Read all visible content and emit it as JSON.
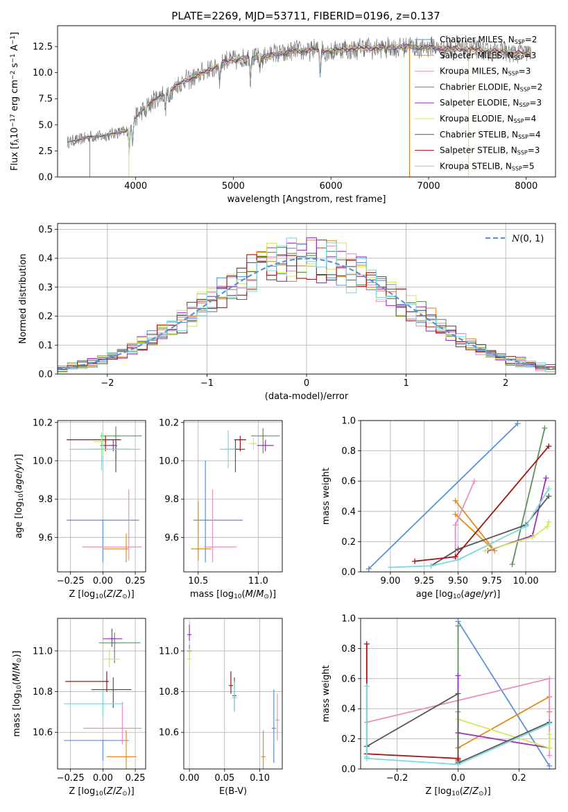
{
  "figure": {
    "title": "PLATE=2269, MJD=53711, FIBERID=0196, z=0.137"
  },
  "colors": {
    "Chabrier MILES": "#5b8fd6",
    "Salpeter MILES": "#e38a1b",
    "Kroupa MILES": "#e88fc2",
    "Chabrier ELODIE": "#5f8f62",
    "Salpeter ELODIE": "#9b2fc1",
    "Kroupa ELODIE": "#d4e85a",
    "Chabrier STELIB": "#555555",
    "Salpeter STELIB": "#a11515",
    "Kroupa STELIB": "#7fd8dc"
  },
  "chart_data": [
    {
      "id": "spectrum",
      "type": "line",
      "xlabel": "wavelength [Angstrom, rest frame]",
      "ylabel": "Flux [f_λ 10^-17 erg cm^-2 s^-1 A^-1]",
      "xlim": [
        3200,
        8300
      ],
      "ylim": [
        0,
        14.5
      ],
      "xticks": [
        4000,
        5000,
        6000,
        7000,
        8000
      ],
      "yticks": [
        0.0,
        2.5,
        5.0,
        7.5,
        10.0,
        12.5
      ],
      "legend_position": "top-right",
      "legend": [
        {
          "model": "Chabrier MILES",
          "nssp": "2"
        },
        {
          "model": "Salpeter MILES",
          "nssp": "3"
        },
        {
          "model": "Kroupa MILES",
          "nssp": "3"
        },
        {
          "model": "Chabrier ELODIE",
          "nssp": "2"
        },
        {
          "model": "Salpeter ELODIE",
          "nssp": "3"
        },
        {
          "model": "Kroupa ELODIE",
          "nssp": "4"
        },
        {
          "model": "Chabrier STELIB",
          "nssp": "4"
        },
        {
          "model": "Salpeter STELIB",
          "nssp": "3"
        },
        {
          "model": "Kroupa STELIB",
          "nssp": "5"
        }
      ],
      "continuum": [
        [
          3300,
          3.3
        ],
        [
          3500,
          3.8
        ],
        [
          3700,
          4.0
        ],
        [
          3900,
          4.4
        ],
        [
          4000,
          5.6
        ],
        [
          4100,
          6.8
        ],
        [
          4300,
          8.0
        ],
        [
          4500,
          9.2
        ],
        [
          4700,
          10.0
        ],
        [
          4900,
          11.0
        ],
        [
          5100,
          11.4
        ],
        [
          5300,
          11.5
        ],
        [
          5500,
          11.9
        ],
        [
          5800,
          12.2
        ],
        [
          6000,
          12.1
        ],
        [
          6200,
          12.3
        ],
        [
          6500,
          12.4
        ],
        [
          6800,
          12.5
        ],
        [
          7000,
          12.4
        ],
        [
          7300,
          12.3
        ],
        [
          7600,
          12.1
        ],
        [
          7900,
          11.9
        ],
        [
          8050,
          11.8
        ]
      ],
      "absorption_lines": [
        [
          3934,
          2.2
        ],
        [
          3969,
          2.0
        ],
        [
          4102,
          1.0
        ],
        [
          4304,
          1.5
        ],
        [
          4341,
          1.0
        ],
        [
          4861,
          1.4
        ],
        [
          5175,
          2.2
        ],
        [
          5270,
          0.8
        ],
        [
          5890,
          2.5
        ],
        [
          6563,
          0.6
        ]
      ],
      "spikes": [
        [
          3530,
          0
        ],
        [
          3930,
          0
        ],
        [
          6805,
          0
        ],
        [
          7410,
          0
        ]
      ]
    },
    {
      "id": "residuals",
      "type": "area",
      "xlabel": "(data-model)/error",
      "ylabel": "Normed distribution",
      "xlim": [
        -2.5,
        2.5
      ],
      "ylim": [
        0,
        0.52
      ],
      "xticks": [
        -2,
        -1,
        0,
        1,
        2
      ],
      "yticks": [
        0.0,
        0.1,
        0.2,
        0.3,
        0.4,
        0.5
      ],
      "grid": true,
      "legend_position": "top-right",
      "legend_label": "N(0,1)",
      "bin_width": 0.1,
      "hist_range": [
        -2.5,
        2.5
      ]
    },
    {
      "id": "age-vs-Z",
      "type": "scatter",
      "xlabel": "Z [log10(Z/Z⊙)]",
      "ylabel": "age  [log10(age/yr)]",
      "xlim": [
        -0.35,
        0.33
      ],
      "ylim": [
        9.42,
        10.21
      ],
      "xticks": [
        -0.25,
        0.0,
        0.25
      ],
      "xticklabels": [
        "−0.25",
        "0.00",
        "0.25"
      ],
      "yticks": [
        9.6,
        9.8,
        10.0,
        10.2
      ],
      "grid": true,
      "points": [
        {
          "model": "Chabrier MILES",
          "x": 0.0,
          "xerr": [
            0.28,
            0.28
          ],
          "y": 9.69,
          "yerr": [
            0.22,
            0.0
          ]
        },
        {
          "model": "Salpeter MILES",
          "x": 0.18,
          "xerr": [
            0.18,
            0.0
          ],
          "y": 9.54,
          "yerr": [
            0.07,
            0.08
          ]
        },
        {
          "model": "Kroupa MILES",
          "x": 0.2,
          "xerr": [
            0.36,
            0.1
          ],
          "y": 9.55,
          "yerr": [
            0.07,
            0.3
          ]
        },
        {
          "model": "Chabrier ELODIE",
          "x": 0.1,
          "xerr": [
            0.12,
            0.2
          ],
          "y": 10.13,
          "yerr": [
            0.12,
            0.05
          ]
        },
        {
          "model": "Salpeter ELODIE",
          "x": 0.08,
          "xerr": [
            0.1,
            0.03
          ],
          "y": 10.08,
          "yerr": [
            0.03,
            0.03
          ]
        },
        {
          "model": "Kroupa ELODIE",
          "x": 0.0,
          "xerr": [
            0.07,
            0.03
          ],
          "y": 10.1,
          "yerr": [
            0.07,
            0.05
          ]
        },
        {
          "model": "Chabrier STELIB",
          "x": 0.1,
          "xerr": [
            0.2,
            0.12
          ],
          "y": 10.06,
          "yerr": [
            0.12,
            0.05
          ]
        },
        {
          "model": "Salpeter STELIB",
          "x": 0.02,
          "xerr": [
            0.3,
            0.12
          ],
          "y": 10.11,
          "yerr": [
            0.06,
            0.02
          ]
        },
        {
          "model": "Kroupa STELIB",
          "x": -0.01,
          "xerr": [
            0.25,
            0.3
          ],
          "y": 10.06,
          "yerr": [
            0.11,
            0.09
          ]
        }
      ]
    },
    {
      "id": "age-vs-mass",
      "type": "scatter",
      "xlabel": "mass [log10(M/M⊙)]",
      "ylabel": "",
      "xlim": [
        10.38,
        11.2
      ],
      "ylim": [
        9.42,
        10.21
      ],
      "xticks": [
        10.5,
        11.0
      ],
      "xticklabels": [
        "10.5",
        "11.0"
      ],
      "yticks": [
        9.6,
        9.8,
        10.0,
        10.2
      ],
      "grid": true,
      "points": [
        {
          "model": "Chabrier MILES",
          "x": 10.56,
          "xerr": [
            0.1,
            0.31
          ],
          "y": 9.69,
          "yerr": [
            0.22,
            0.31
          ]
        },
        {
          "model": "Salpeter MILES",
          "x": 10.5,
          "xerr": [
            0.06,
            0.11
          ],
          "y": 9.54,
          "yerr": [
            0.06,
            0.25
          ]
        },
        {
          "model": "Kroupa MILES",
          "x": 10.62,
          "xerr": [
            0.07,
            0.2
          ],
          "y": 9.55,
          "yerr": [
            0.08,
            0.3
          ]
        },
        {
          "model": "Chabrier ELODIE",
          "x": 11.04,
          "xerr": [
            0.1,
            0.14
          ],
          "y": 10.13,
          "yerr": [
            0.09,
            0.04
          ]
        },
        {
          "model": "Salpeter ELODIE",
          "x": 11.06,
          "xerr": [
            0.07,
            0.07
          ],
          "y": 10.08,
          "yerr": [
            0.03,
            0.03
          ]
        },
        {
          "model": "Kroupa ELODIE",
          "x": 10.96,
          "xerr": [
            0.04,
            0.03
          ],
          "y": 10.09,
          "yerr": [
            0.03,
            0.03
          ]
        },
        {
          "model": "Chabrier STELIB",
          "x": 10.81,
          "xerr": [
            0.08,
            0.08
          ],
          "y": 10.06,
          "yerr": [
            0.12,
            0.05
          ]
        },
        {
          "model": "Salpeter STELIB",
          "x": 10.85,
          "xerr": [
            0.05,
            0.05
          ],
          "y": 10.11,
          "yerr": [
            0.06,
            0.02
          ]
        },
        {
          "model": "Kroupa STELIB",
          "x": 10.75,
          "xerr": [
            0.07,
            0.06
          ],
          "y": 10.06,
          "yerr": [
            0.1,
            0.1
          ]
        }
      ]
    },
    {
      "id": "weight-vs-age",
      "type": "line",
      "xlabel": "age  [log10(age/yr)]",
      "ylabel": "mass weight",
      "xlim": [
        8.78,
        10.22
      ],
      "ylim": [
        0,
        1
      ],
      "xticks": [
        9.0,
        9.25,
        9.5,
        9.75,
        10.0
      ],
      "xticklabels": [
        "9.00",
        "9.25",
        "9.50",
        "9.75",
        "10.00"
      ],
      "yticks": [
        0.0,
        0.2,
        0.4,
        0.6,
        0.8,
        1.0
      ],
      "grid": true,
      "series": [
        {
          "model": "Chabrier MILES",
          "x": [
            8.84,
            9.94
          ],
          "y": [
            0.02,
            0.98
          ]
        },
        {
          "model": "Salpeter MILES",
          "x": [
            9.48,
            9.77,
            9.48
          ],
          "y": [
            0.47,
            0.14,
            0.38
          ]
        },
        {
          "model": "Kroupa MILES",
          "x": [
            9.48,
            9.48,
            9.62
          ],
          "y": [
            0.09,
            0.31,
            0.6
          ]
        },
        {
          "model": "Chabrier ELODIE",
          "x": [
            9.9,
            10.14
          ],
          "y": [
            0.05,
            0.95
          ]
        },
        {
          "model": "Salpeter ELODIE",
          "x": [
            9.72,
            10.05,
            10.15
          ],
          "y": [
            0.14,
            0.24,
            0.62
          ]
        },
        {
          "model": "Kroupa ELODIE",
          "x": [
            9.7,
            10.05,
            10.16,
            10.17
          ],
          "y": [
            0.14,
            0.23,
            0.3,
            0.33
          ]
        },
        {
          "model": "Chabrier STELIB",
          "x": [
            9.3,
            9.5,
            10.0,
            10.17
          ],
          "y": [
            0.04,
            0.15,
            0.31,
            0.5
          ]
        },
        {
          "model": "Salpeter STELIB",
          "x": [
            9.18,
            9.48,
            10.17
          ],
          "y": [
            0.07,
            0.1,
            0.83
          ]
        },
        {
          "model": "Kroupa STELIB",
          "x": [
            9.0,
            9.3,
            9.5,
            10.0,
            10.17
          ],
          "y": [
            0.03,
            0.04,
            0.08,
            0.3,
            0.55
          ]
        }
      ]
    },
    {
      "id": "mass-vs-Z",
      "type": "scatter",
      "xlabel": "Z [log10(Z/Z⊙)]",
      "ylabel": "mass [log10(M/M⊙)]",
      "xlim": [
        -0.35,
        0.33
      ],
      "ylim": [
        10.42,
        11.16
      ],
      "xticks": [
        -0.25,
        0.0,
        0.25
      ],
      "xticklabels": [
        "−0.25",
        "0.00",
        "0.25"
      ],
      "yticks": [
        10.6,
        10.8,
        11.0
      ],
      "grid": true,
      "points": [
        {
          "model": "Chabrier MILES",
          "x": 0.0,
          "xerr": [
            0.3,
            0.2
          ],
          "y": 10.56,
          "yerr": [
            0.1,
            0.0
          ]
        },
        {
          "model": "Salpeter MILES",
          "x": 0.18,
          "xerr": [
            0.15,
            0.08
          ],
          "y": 10.48,
          "yerr": [
            0.06,
            0.13
          ]
        },
        {
          "model": "Kroupa MILES",
          "x": 0.15,
          "xerr": [
            0.3,
            0.15
          ],
          "y": 10.62,
          "yerr": [
            0.08,
            0.13
          ]
        },
        {
          "model": "Chabrier ELODIE",
          "x": 0.09,
          "xerr": [
            0.12,
            0.2
          ],
          "y": 11.04,
          "yerr": [
            0.1,
            0.05
          ]
        },
        {
          "model": "Salpeter ELODIE",
          "x": 0.07,
          "xerr": [
            0.07,
            0.08
          ],
          "y": 11.06,
          "yerr": [
            0.04,
            0.05
          ]
        },
        {
          "model": "Kroupa ELODIE",
          "x": 0.05,
          "xerr": [
            0.05,
            0.08
          ],
          "y": 10.96,
          "yerr": [
            0.04,
            0.05
          ]
        },
        {
          "model": "Chabrier STELIB",
          "x": 0.08,
          "xerr": [
            0.17,
            0.14
          ],
          "y": 10.81,
          "yerr": [
            0.09,
            0.06
          ]
        },
        {
          "model": "Salpeter STELIB",
          "x": 0.03,
          "xerr": [
            0.32,
            0.0
          ],
          "y": 10.85,
          "yerr": [
            0.05,
            0.05
          ]
        },
        {
          "model": "Kroupa STELIB",
          "x": 0.0,
          "xerr": [
            0.3,
            0.16
          ],
          "y": 10.74,
          "yerr": [
            0.06,
            0.06
          ]
        }
      ]
    },
    {
      "id": "mass-vs-ebv",
      "type": "scatter",
      "xlabel": "E(B-V)",
      "ylabel": "",
      "xlim": [
        -0.008,
        0.132
      ],
      "ylim": [
        10.42,
        11.16
      ],
      "xticks": [
        0.0,
        0.05,
        0.1
      ],
      "xticklabels": [
        "0.00",
        "0.05",
        "0.10"
      ],
      "yticks": [
        10.6,
        10.8,
        11.0
      ],
      "grid": true,
      "points": [
        {
          "model": "Chabrier MILES",
          "x": 0.12,
          "xerr": [
            0,
            0
          ],
          "y": 10.62,
          "yerr": [
            0.17,
            0.19
          ]
        },
        {
          "model": "Salpeter MILES",
          "x": 0.105,
          "xerr": [
            0,
            0
          ],
          "y": 10.48,
          "yerr": [
            0.06,
            0.13
          ]
        },
        {
          "model": "Kroupa MILES",
          "x": 0.125,
          "xerr": [
            0,
            0
          ],
          "y": 10.66,
          "yerr": [
            0.1,
            0.13
          ]
        },
        {
          "model": "Chabrier ELODIE",
          "x": 0.0,
          "xerr": [
            0,
            0
          ],
          "y": 11.0,
          "yerr": [
            0.04,
            0.03
          ]
        },
        {
          "model": "Salpeter ELODIE",
          "x": 0.0,
          "xerr": [
            0,
            0
          ],
          "y": 11.08,
          "yerr": [
            0.03,
            0.05
          ]
        },
        {
          "model": "Kroupa ELODIE",
          "x": 0.0,
          "xerr": [
            0,
            0
          ],
          "y": 10.96,
          "yerr": [
            0.04,
            0.05
          ]
        },
        {
          "model": "Chabrier STELIB",
          "x": 0.064,
          "xerr": [
            0,
            0
          ],
          "y": 10.78,
          "yerr": [
            0.07,
            0.09
          ]
        },
        {
          "model": "Salpeter STELIB",
          "x": 0.059,
          "xerr": [
            0,
            0
          ],
          "y": 10.83,
          "yerr": [
            0.04,
            0.07
          ]
        },
        {
          "model": "Kroupa STELIB",
          "x": 0.064,
          "xerr": [
            0,
            0
          ],
          "y": 10.77,
          "yerr": [
            0.07,
            0.08
          ]
        }
      ]
    },
    {
      "id": "weight-vs-Z",
      "type": "line",
      "xlabel": "Z [log10(Z/Z⊙)]",
      "ylabel": "mass weight",
      "xlim": [
        -0.32,
        0.32
      ],
      "ylim": [
        0,
        1
      ],
      "xticks": [
        -0.2,
        0.0,
        0.2
      ],
      "xticklabels": [
        "−0.2",
        "0.0",
        "0.2"
      ],
      "yticks": [
        0.0,
        0.2,
        0.4,
        0.6,
        0.8,
        1.0
      ],
      "grid": true,
      "series": [
        {
          "model": "Chabrier MILES",
          "x": [
            0.0,
            0.3
          ],
          "y": [
            0.98,
            0.02
          ]
        },
        {
          "model": "Salpeter MILES",
          "x": [
            0.0,
            0.0,
            0.3,
            0.3
          ],
          "y": [
            0.38,
            0.14,
            0.48,
            0.38
          ]
        },
        {
          "model": "Kroupa MILES",
          "x": [
            -0.3,
            0.3,
            0.3
          ],
          "y": [
            0.31,
            0.6,
            0.09
          ]
        },
        {
          "model": "Chabrier ELODIE",
          "x": [
            0.0,
            0.0
          ],
          "y": [
            0.05,
            0.95
          ]
        },
        {
          "model": "Salpeter ELODIE",
          "x": [
            0.0,
            0.0,
            0.3
          ],
          "y": [
            0.62,
            0.24,
            0.14
          ]
        },
        {
          "model": "Kroupa ELODIE",
          "x": [
            0.0,
            0.3,
            0.3
          ],
          "y": [
            0.33,
            0.14,
            0.23
          ]
        },
        {
          "model": "Chabrier STELIB",
          "x": [
            -0.3,
            0.0,
            0.0,
            0.3
          ],
          "y": [
            0.15,
            0.5,
            0.04,
            0.31
          ]
        },
        {
          "model": "Salpeter STELIB",
          "x": [
            -0.3,
            -0.3,
            0.0,
            0.0
          ],
          "y": [
            0.83,
            0.1,
            0.07,
            0.06
          ]
        },
        {
          "model": "Kroupa STELIB",
          "x": [
            -0.3,
            -0.3,
            -0.3,
            0.0,
            0.3
          ],
          "y": [
            0.55,
            0.08,
            0.07,
            0.03,
            0.3
          ]
        }
      ]
    }
  ]
}
